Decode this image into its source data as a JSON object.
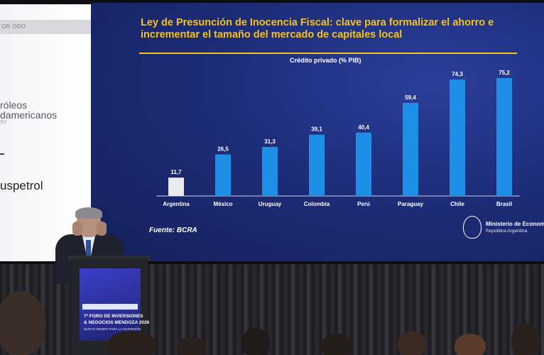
{
  "sponsor": {
    "category": "OR ORO",
    "name_line1": "róleos",
    "name_line2": "damericanos",
    "name_line3": "SV",
    "brand": "uspetrol"
  },
  "slide": {
    "title": "Ley de Presunción de Inocencia Fiscal: clave para formalizar el ahorro e incrementar el tamaño del mercado de capitales local",
    "source": "Fuente: BCRA",
    "ministry_line1": "Ministerio de Economía",
    "ministry_line2": "República Argentina"
  },
  "chart_data": {
    "type": "bar",
    "title": "Crédito privado (% PIB)",
    "categories": [
      "Argentina",
      "México",
      "Uruguay",
      "Colombia",
      "Perú",
      "Paraguay",
      "Chile",
      "Brasil"
    ],
    "values": [
      11.7,
      26.5,
      31.3,
      39.1,
      40.4,
      59.4,
      74.3,
      75.2
    ],
    "value_labels": [
      "11,7",
      "26,5",
      "31,3",
      "39,1",
      "40,4",
      "59,4",
      "74,3",
      "75,2"
    ],
    "highlight_colors": [
      "#e9e9ee",
      "#1e8fe6",
      "#1e8fe6",
      "#1e8fe6",
      "#1e8fe6",
      "#1e8fe6",
      "#1e8fe6",
      "#1e8fe6"
    ],
    "ylim": [
      0,
      80
    ],
    "grid": false,
    "legend": "none"
  },
  "lectern": {
    "line1": "7º FORO DE INVERSIONES",
    "line2": "& NEGOCIOS MENDOZA 2026",
    "line3": "NUEVO TIEMPO PARA LA INVERSIÓN"
  }
}
